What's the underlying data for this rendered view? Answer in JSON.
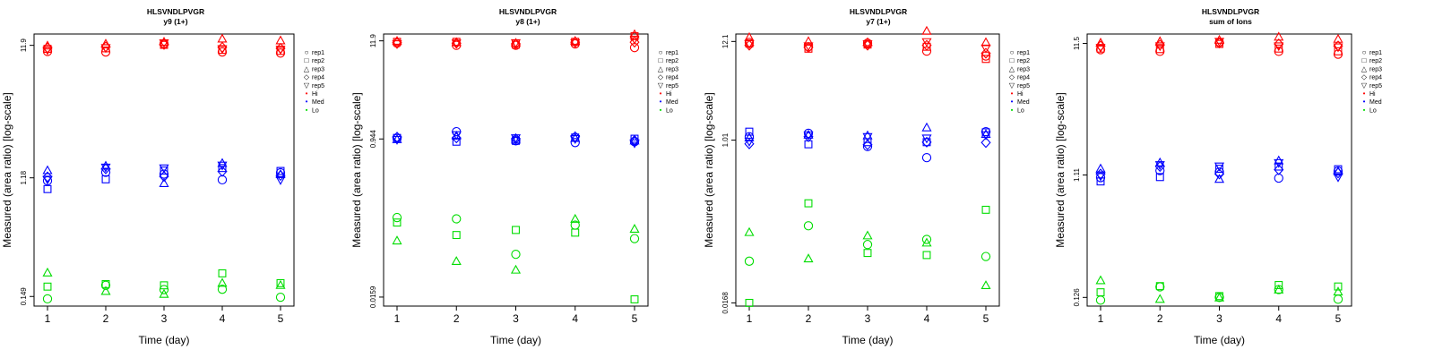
{
  "figure": {
    "shared_ylabel": "Measured (area ratio) [log-scale]",
    "shared_xlabel": "Time (day)",
    "legend": [
      {
        "label": "rep1",
        "glyph": "○",
        "color": "#000000"
      },
      {
        "label": "rep2",
        "glyph": "□",
        "color": "#000000"
      },
      {
        "label": "rep3",
        "glyph": "△",
        "color": "#000000"
      },
      {
        "label": "rep4",
        "glyph": "◇",
        "color": "#000000"
      },
      {
        "label": "rep5",
        "glyph": "▽",
        "color": "#000000"
      },
      {
        "label": "Hi",
        "glyph": "•",
        "color": "#ff0000"
      },
      {
        "label": "Med",
        "glyph": "•",
        "color": "#0000ff"
      },
      {
        "label": "Lo",
        "glyph": "•",
        "color": "#00dd00"
      }
    ],
    "colors": {
      "Hi": "#ff0000",
      "Med": "#0000ff",
      "Lo": "#00dd00"
    },
    "markers": {
      "rep1": "circle",
      "rep2": "square",
      "rep3": "triangle",
      "rep4": "diamond",
      "rep5": "triangle-down"
    }
  },
  "chart_data": [
    {
      "type": "scatter",
      "title": "HLSVNDLPVGR",
      "subtitle": "y9 (1+)",
      "xlabel": "Time (day)",
      "ylabel": "Measured (area ratio) [log-scale]",
      "yscale": "log",
      "x": [
        1,
        2,
        3,
        4,
        5
      ],
      "xticks": [
        "1",
        "2",
        "3",
        "4",
        "5"
      ],
      "ytick_labels": [
        "0.149",
        "1.18",
        "11.9"
      ],
      "ylim": [
        0.126,
        14.5
      ],
      "legend_position": "right",
      "series": [
        {
          "group": "Hi",
          "replicate": "rep1",
          "values": [
            10.7,
            10.6,
            12.2,
            10.6,
            10.4
          ]
        },
        {
          "group": "Hi",
          "replicate": "rep2",
          "values": [
            11.2,
            11.3,
            12.0,
            11.0,
            10.8
          ]
        },
        {
          "group": "Hi",
          "replicate": "rep3",
          "values": [
            11.8,
            12.2,
            12.6,
            13.3,
            12.9
          ]
        },
        {
          "group": "Hi",
          "replicate": "rep4",
          "values": [
            11.4,
            11.6,
            12.1,
            11.5,
            11.3
          ]
        },
        {
          "group": "Hi",
          "replicate": "rep5",
          "values": [
            11.0,
            11.4,
            12.4,
            11.2,
            11.1
          ]
        },
        {
          "group": "Med",
          "replicate": "rep1",
          "values": [
            1.12,
            1.3,
            1.26,
            1.14,
            1.29
          ]
        },
        {
          "group": "Med",
          "replicate": "rep2",
          "values": [
            0.97,
            1.15,
            1.34,
            1.4,
            1.33
          ]
        },
        {
          "group": "Med",
          "replicate": "rep3",
          "values": [
            1.34,
            1.45,
            1.07,
            1.52,
            1.25
          ]
        },
        {
          "group": "Med",
          "replicate": "rep4",
          "values": [
            1.2,
            1.38,
            1.21,
            1.32,
            1.23
          ]
        },
        {
          "group": "Med",
          "replicate": "rep5",
          "values": [
            1.15,
            1.42,
            1.4,
            1.47,
            1.14
          ]
        },
        {
          "group": "Lo",
          "replicate": "rep1",
          "values": [
            0.143,
            0.181,
            0.168,
            0.169,
            0.147
          ]
        },
        {
          "group": "Lo",
          "replicate": "rep2",
          "values": [
            0.177,
            0.185,
            0.181,
            0.223,
            0.188
          ]
        },
        {
          "group": "Lo",
          "replicate": "rep3",
          "values": [
            0.225,
            0.163,
            0.155,
            0.188,
            0.181
          ]
        }
      ]
    },
    {
      "type": "scatter",
      "title": "HLSVNDLPVGR",
      "subtitle": "y8 (1+)",
      "xlabel": "Time (day)",
      "ylabel": "Measured (area ratio) [log-scale]",
      "yscale": "log",
      "x": [
        1,
        2,
        3,
        4,
        5
      ],
      "xticks": [
        "1",
        "2",
        "3",
        "4",
        "5"
      ],
      "ytick_labels": [
        "0.0159",
        "0.944",
        "11.9"
      ],
      "ylim": [
        0.0126,
        14.2
      ],
      "legend_position": "right",
      "series": [
        {
          "group": "Hi",
          "replicate": "rep1",
          "values": [
            11.2,
            10.6,
            10.6,
            11.0,
            10.0
          ]
        },
        {
          "group": "Hi",
          "replicate": "rep2",
          "values": [
            11.6,
            11.6,
            10.8,
            11.6,
            13.4
          ]
        },
        {
          "group": "Hi",
          "replicate": "rep3",
          "values": [
            11.8,
            11.4,
            11.2,
            11.8,
            14.0
          ]
        },
        {
          "group": "Hi",
          "replicate": "rep4",
          "values": [
            11.4,
            11.2,
            11.0,
            11.5,
            11.5
          ]
        },
        {
          "group": "Hi",
          "replicate": "rep5",
          "values": [
            11.0,
            11.2,
            11.3,
            11.3,
            12.4
          ]
        },
        {
          "group": "Med",
          "replicate": "rep1",
          "values": [
            0.96,
            1.14,
            0.9,
            0.86,
            0.88
          ]
        },
        {
          "group": "Med",
          "replicate": "rep2",
          "values": [
            0.97,
            0.88,
            0.9,
            0.98,
            0.95
          ]
        },
        {
          "group": "Med",
          "replicate": "rep3",
          "values": [
            0.93,
            1.02,
            0.92,
            0.96,
            0.9
          ]
        },
        {
          "group": "Med",
          "replicate": "rep4",
          "values": [
            0.99,
            0.97,
            0.95,
            1.0,
            0.91
          ]
        },
        {
          "group": "Med",
          "replicate": "rep5",
          "values": [
            0.93,
            1.05,
            0.97,
            0.95,
            0.85
          ]
        },
        {
          "group": "Lo",
          "replicate": "rep1",
          "values": [
            0.124,
            0.12,
            0.048,
            0.102,
            0.072
          ]
        },
        {
          "group": "Lo",
          "replicate": "rep2",
          "values": [
            0.109,
            0.079,
            0.09,
            0.084,
            0.015
          ]
        },
        {
          "group": "Lo",
          "replicate": "rep3",
          "values": [
            0.068,
            0.04,
            0.032,
            0.119,
            0.092
          ]
        }
      ]
    },
    {
      "type": "scatter",
      "title": "HLSVNDLPVGR",
      "subtitle": "y7 (1+)",
      "xlabel": "Time (day)",
      "ylabel": "Measured (area ratio) [log-scale]",
      "yscale": "log",
      "x": [
        1,
        2,
        3,
        4,
        5
      ],
      "xticks": [
        "1",
        "2",
        "3",
        "4",
        "5"
      ],
      "ytick_labels": [
        "0.0168",
        "1.01",
        "12.1"
      ],
      "ylim": [
        0.0155,
        14.6
      ],
      "legend_position": "right",
      "series": [
        {
          "group": "Hi",
          "replicate": "rep1",
          "values": [
            11.8,
            10.6,
            11.6,
            9.5,
            8.4
          ]
        },
        {
          "group": "Hi",
          "replicate": "rep2",
          "values": [
            11.5,
            10.1,
            11.2,
            10.6,
            7.8
          ]
        },
        {
          "group": "Hi",
          "replicate": "rep3",
          "values": [
            13.4,
            12.1,
            11.8,
            15.7,
            11.8
          ]
        },
        {
          "group": "Hi",
          "replicate": "rep4",
          "values": [
            11.0,
            10.4,
            11.0,
            11.0,
            9.0
          ]
        },
        {
          "group": "Hi",
          "replicate": "rep5",
          "values": [
            11.4,
            10.8,
            11.4,
            12.0,
            10.2
          ]
        },
        {
          "group": "Med",
          "replicate": "rep1",
          "values": [
            1.1,
            1.2,
            0.86,
            0.65,
            1.25
          ]
        },
        {
          "group": "Med",
          "replicate": "rep2",
          "values": [
            1.25,
            0.91,
            0.96,
            0.96,
            1.23
          ]
        },
        {
          "group": "Med",
          "replicate": "rep3",
          "values": [
            1.07,
            1.15,
            1.13,
            1.38,
            1.17
          ]
        },
        {
          "group": "Med",
          "replicate": "rep4",
          "values": [
            0.92,
            1.1,
            0.9,
            0.96,
            0.95
          ]
        },
        {
          "group": "Med",
          "replicate": "rep5",
          "values": [
            0.98,
            1.15,
            1.1,
            1.06,
            1.15
          ]
        },
        {
          "group": "Lo",
          "replicate": "rep1",
          "values": [
            0.048,
            0.117,
            0.073,
            0.083,
            0.054
          ]
        },
        {
          "group": "Lo",
          "replicate": "rep2",
          "values": [
            0.0168,
            0.206,
            0.059,
            0.056,
            0.175
          ]
        },
        {
          "group": "Lo",
          "replicate": "rep3",
          "values": [
            0.099,
            0.051,
            0.091,
            0.076,
            0.026
          ]
        }
      ]
    },
    {
      "type": "scatter",
      "title": "HLSVNDLPVGR",
      "subtitle": "sum of Ions",
      "xlabel": "Time (day)",
      "ylabel": "Measured (area ratio) [log-scale]",
      "yscale": "log",
      "x": [
        1,
        2,
        3,
        4,
        5
      ],
      "xticks": [
        "1",
        "2",
        "3",
        "4",
        "5"
      ],
      "ytick_labels": [
        "0.126",
        "1.11",
        "11.5"
      ],
      "ylim": [
        0.108,
        13.6
      ],
      "legend_position": "right",
      "series": [
        {
          "group": "Hi",
          "replicate": "rep1",
          "values": [
            10.3,
            10.0,
            11.7,
            10.0,
            9.5
          ]
        },
        {
          "group": "Hi",
          "replicate": "rep2",
          "values": [
            10.5,
            10.4,
            11.4,
            10.5,
            10.0
          ]
        },
        {
          "group": "Hi",
          "replicate": "rep3",
          "values": [
            11.6,
            11.9,
            12.2,
            12.9,
            12.4
          ]
        },
        {
          "group": "Hi",
          "replicate": "rep4",
          "values": [
            11.0,
            11.2,
            11.6,
            11.4,
            11.0
          ]
        },
        {
          "group": "Hi",
          "replicate": "rep5",
          "values": [
            10.7,
            11.0,
            11.9,
            11.0,
            10.8
          ]
        },
        {
          "group": "Med",
          "replicate": "rep1",
          "values": [
            1.06,
            1.2,
            1.17,
            1.05,
            1.19
          ]
        },
        {
          "group": "Med",
          "replicate": "rep2",
          "values": [
            0.99,
            1.07,
            1.24,
            1.29,
            1.23
          ]
        },
        {
          "group": "Med",
          "replicate": "rep3",
          "values": [
            1.24,
            1.38,
            1.03,
            1.43,
            1.18
          ]
        },
        {
          "group": "Med",
          "replicate": "rep4",
          "values": [
            1.13,
            1.29,
            1.13,
            1.22,
            1.15
          ]
        },
        {
          "group": "Med",
          "replicate": "rep5",
          "values": [
            1.09,
            1.33,
            1.3,
            1.38,
            1.07
          ]
        },
        {
          "group": "Lo",
          "replicate": "rep1",
          "values": [
            0.12,
            0.152,
            0.126,
            0.145,
            0.122
          ]
        },
        {
          "group": "Lo",
          "replicate": "rep2",
          "values": [
            0.138,
            0.154,
            0.129,
            0.157,
            0.153
          ]
        },
        {
          "group": "Lo",
          "replicate": "rep3",
          "values": [
            0.17,
            0.122,
            0.125,
            0.144,
            0.139
          ]
        }
      ]
    }
  ]
}
